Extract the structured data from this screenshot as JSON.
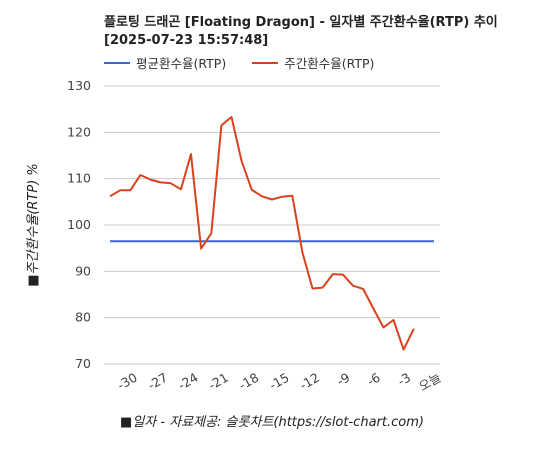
{
  "title_line1": "플로팅 드래곤 [Floating Dragon] - 일자별 주간환수율(RTP) 추이",
  "title_line2": "[2025-07-23 15:57:48]",
  "colors": {
    "avg": "#3a64d6",
    "weekly": "#d8421c",
    "grid": "#cccccc"
  },
  "chart_data": {
    "type": "line",
    "title": "플로팅 드래곤 [Floating Dragon] - 일자별 주간환수율(RTP) 추이 [2025-07-23 15:57:48]",
    "xlabel": "■일자 - 자료제공: 슬롯차트(https://slot-chart.com)",
    "ylabel": "■주간환수율(RTP) %",
    "ylim": [
      70,
      130
    ],
    "yticks": [
      70,
      80,
      90,
      100,
      110,
      120,
      130
    ],
    "xticks": [
      {
        "x": -30,
        "label": "-30"
      },
      {
        "x": -27,
        "label": "-27"
      },
      {
        "x": -24,
        "label": "-24"
      },
      {
        "x": -21,
        "label": "-21"
      },
      {
        "x": -18,
        "label": "-18"
      },
      {
        "x": -15,
        "label": "-15"
      },
      {
        "x": -12,
        "label": "-12"
      },
      {
        "x": -9,
        "label": "-9"
      },
      {
        "x": -6,
        "label": "-6"
      },
      {
        "x": -3,
        "label": "-3"
      },
      {
        "x": 0,
        "label": "오늘"
      }
    ],
    "grid": true,
    "legend": "top-left",
    "x": [
      -32,
      -31,
      -30,
      -29,
      -28,
      -27,
      -26,
      -25,
      -24,
      -23,
      -22,
      -21,
      -20,
      -19,
      -18,
      -17,
      -16,
      -15,
      -14,
      -13,
      -12,
      -11,
      -10,
      -9,
      -8,
      -7,
      -6,
      -5,
      -4,
      -3,
      -2,
      -1,
      0
    ],
    "series": [
      {
        "name": "평균환수율(RTP)",
        "values": [
          96.5,
          96.5,
          96.5,
          96.5,
          96.5,
          96.5,
          96.5,
          96.5,
          96.5,
          96.5,
          96.5,
          96.5,
          96.5,
          96.5,
          96.5,
          96.5,
          96.5,
          96.5,
          96.5,
          96.5,
          96.5,
          96.5,
          96.5,
          96.5,
          96.5,
          96.5,
          96.5,
          96.5,
          96.5,
          96.5,
          96.5,
          96.5,
          96.5
        ]
      },
      {
        "name": "주간환수율(RTP)",
        "values": [
          106.2,
          107.5,
          107.5,
          110.8,
          109.8,
          109.2,
          109.0,
          107.7,
          115.3,
          94.9,
          98.2,
          121.5,
          123.3,
          113.8,
          107.6,
          106.2,
          105.5,
          106.1,
          106.3,
          94.1,
          86.3,
          86.5,
          89.4,
          89.3,
          86.9,
          86.2,
          82.0,
          77.9,
          79.5,
          73.1,
          77.6,
          null,
          null
        ]
      }
    ]
  }
}
